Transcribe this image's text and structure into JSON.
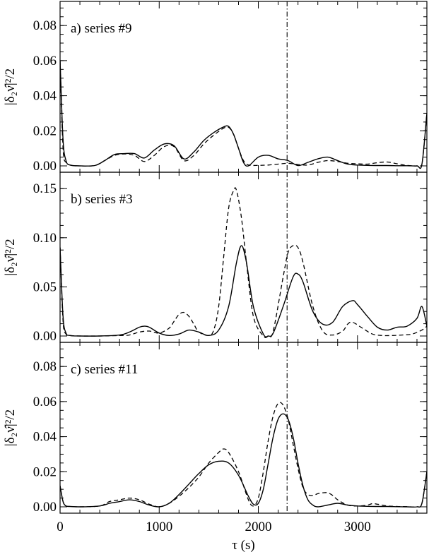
{
  "chart_data": [
    {
      "type": "line",
      "panel": "a) series #9",
      "ylabel": "|δ₂ν̂|²/2",
      "xlabel": "",
      "xlim": [
        0,
        3700
      ],
      "ylim": [
        0,
        0.09
      ],
      "yticks": [
        "0.00",
        "0.02",
        "0.04",
        "0.06",
        "0.08"
      ],
      "ytick_values": [
        0.0,
        0.02,
        0.04,
        0.06,
        0.08
      ],
      "xticks": [
        "0",
        "1000",
        "2000",
        "3000"
      ],
      "xtick_values": [
        0,
        1000,
        2000,
        3000
      ],
      "vline_x": 2290,
      "series": [
        {
          "style": "solid",
          "x": [
            0,
            30,
            60,
            100,
            200,
            350,
            450,
            550,
            650,
            750,
            850,
            950,
            1050,
            1150,
            1250,
            1350,
            1450,
            1550,
            1650,
            1700,
            1750,
            1800,
            1850,
            1900,
            2000,
            2100,
            2200,
            2300,
            2400,
            2500,
            2600,
            2700,
            2800,
            2900,
            3000,
            3100,
            3200,
            3300,
            3400,
            3500,
            3600,
            3650,
            3700
          ],
          "y": [
            0.06,
            0.015,
            0.003,
            0.0005,
            0.0,
            0.0002,
            0.003,
            0.0065,
            0.007,
            0.007,
            0.0045,
            0.009,
            0.0125,
            0.0115,
            0.004,
            0.008,
            0.0145,
            0.019,
            0.0222,
            0.0225,
            0.018,
            0.01,
            0.002,
            0.0,
            0.005,
            0.006,
            0.004,
            0.003,
            0.0002,
            0.002,
            0.004,
            0.005,
            0.003,
            0.001,
            0.0005,
            0.0003,
            0.0002,
            0.0002,
            0.0001,
            0.0001,
            0.0,
            0.001,
            0.03
          ]
        },
        {
          "style": "dashed",
          "x": [
            0,
            30,
            60,
            100,
            200,
            350,
            450,
            550,
            650,
            750,
            850,
            950,
            1050,
            1150,
            1250,
            1350,
            1450,
            1550,
            1650,
            1700,
            1750,
            1800,
            1850,
            1900,
            2000,
            2100,
            2200,
            2300,
            2400,
            2500,
            2600,
            2700,
            2800,
            2900,
            3000,
            3100,
            3200,
            3300,
            3400,
            3500,
            3600,
            3650,
            3700
          ],
          "y": [
            0.06,
            0.01,
            0.002,
            0.0005,
            0.0,
            0.0002,
            0.003,
            0.006,
            0.0068,
            0.006,
            0.0025,
            0.006,
            0.011,
            0.011,
            0.003,
            0.006,
            0.0125,
            0.0175,
            0.0215,
            0.022,
            0.018,
            0.01,
            0.003,
            0.0005,
            0.0003,
            0.0005,
            0.001,
            0.0015,
            0.0008,
            0.0005,
            0.002,
            0.003,
            0.0025,
            0.0015,
            0.0012,
            0.001,
            0.0018,
            0.0022,
            0.0012,
            0.0003,
            0.0,
            0.001,
            0.03
          ]
        }
      ]
    },
    {
      "type": "line",
      "panel": "b) series #3",
      "ylabel": "|δ₂ν̂|²/2",
      "xlabel": "",
      "xlim": [
        0,
        3700
      ],
      "ylim": [
        0,
        0.16
      ],
      "yticks": [
        "0.00",
        "0.05",
        "0.10",
        "0.15"
      ],
      "ytick_values": [
        0.0,
        0.05,
        0.1,
        0.15
      ],
      "xticks": [
        "0",
        "1000",
        "2000",
        "3000"
      ],
      "xtick_values": [
        0,
        1000,
        2000,
        3000
      ],
      "vline_x": 2290,
      "series": [
        {
          "style": "solid",
          "x": [
            0,
            30,
            60,
            100,
            200,
            400,
            600,
            700,
            800,
            850,
            900,
            1000,
            1100,
            1200,
            1300,
            1400,
            1500,
            1600,
            1700,
            1780,
            1830,
            1880,
            1950,
            2050,
            2100,
            2150,
            2250,
            2350,
            2400,
            2450,
            2550,
            2650,
            2750,
            2850,
            2950,
            3000,
            3100,
            3200,
            3300,
            3400,
            3500,
            3600,
            3650,
            3700
          ],
          "y": [
            0.09,
            0.02,
            0.003,
            0.0005,
            0.0,
            0.0,
            0.001,
            0.004,
            0.009,
            0.01,
            0.009,
            0.003,
            0.0005,
            0.002,
            0.006,
            0.004,
            0.0005,
            0.006,
            0.03,
            0.075,
            0.092,
            0.075,
            0.03,
            0.002,
            0.0,
            0.003,
            0.03,
            0.06,
            0.063,
            0.055,
            0.025,
            0.012,
            0.014,
            0.03,
            0.036,
            0.032,
            0.02,
            0.009,
            0.006,
            0.009,
            0.01,
            0.018,
            0.03,
            0.01
          ]
        },
        {
          "style": "dashed",
          "x": [
            0,
            30,
            60,
            100,
            200,
            400,
            600,
            700,
            800,
            900,
            1000,
            1100,
            1150,
            1200,
            1250,
            1300,
            1350,
            1400,
            1500,
            1550,
            1600,
            1650,
            1700,
            1750,
            1780,
            1830,
            1880,
            1950,
            2050,
            2100,
            2150,
            2250,
            2300,
            2350,
            2400,
            2450,
            2550,
            2650,
            2750,
            2850,
            2900,
            2950,
            3050,
            3150,
            3250,
            3350,
            3450,
            3550,
            3650,
            3700
          ],
          "y": [
            0.09,
            0.015,
            0.002,
            0.0005,
            0.0,
            0.0,
            0.0005,
            0.001,
            0.004,
            0.005,
            0.003,
            0.008,
            0.015,
            0.022,
            0.024,
            0.02,
            0.012,
            0.004,
            0.0005,
            0.006,
            0.03,
            0.08,
            0.13,
            0.148,
            0.148,
            0.12,
            0.075,
            0.02,
            0.0,
            0.0,
            0.005,
            0.06,
            0.085,
            0.092,
            0.09,
            0.075,
            0.03,
            0.005,
            0.001,
            0.005,
            0.012,
            0.014,
            0.008,
            0.002,
            0.0005,
            0.0005,
            0.001,
            0.002,
            0.006,
            0.01
          ]
        }
      ]
    },
    {
      "type": "line",
      "panel": "c) series #11",
      "ylabel": "|δ₂ν̂|²/2",
      "xlabel": "τ (s)",
      "xlim": [
        0,
        3700
      ],
      "ylim": [
        0,
        0.09
      ],
      "yticks": [
        "0.00",
        "0.02",
        "0.04",
        "0.06",
        "0.08"
      ],
      "ytick_values": [
        0.0,
        0.02,
        0.04,
        0.06,
        0.08
      ],
      "xticks": [
        "0",
        "1000",
        "2000",
        "3000"
      ],
      "xtick_values": [
        0,
        1000,
        2000,
        3000
      ],
      "vline_x": 2290,
      "series": [
        {
          "style": "solid",
          "x": [
            0,
            30,
            60,
            100,
            200,
            400,
            500,
            600,
            700,
            800,
            900,
            1000,
            1100,
            1200,
            1300,
            1400,
            1500,
            1600,
            1700,
            1800,
            1900,
            1950,
            2000,
            2050,
            2100,
            2150,
            2200,
            2250,
            2300,
            2350,
            2400,
            2450,
            2500,
            2550,
            2600,
            2700,
            2800,
            2900,
            3000,
            3100,
            3200,
            3300,
            3400,
            3500,
            3600,
            3650,
            3700
          ],
          "y": [
            0.012,
            0.003,
            0.0005,
            0.0002,
            0.0,
            0.0005,
            0.002,
            0.003,
            0.004,
            0.003,
            0.001,
            0.0,
            0.002,
            0.007,
            0.013,
            0.019,
            0.024,
            0.026,
            0.025,
            0.018,
            0.006,
            0.0015,
            0.002,
            0.01,
            0.025,
            0.04,
            0.05,
            0.053,
            0.05,
            0.04,
            0.025,
            0.012,
            0.004,
            0.001,
            0.0,
            0.001,
            0.002,
            0.001,
            0.0005,
            0.0003,
            0.0002,
            0.0002,
            0.0001,
            0.0,
            0.0,
            0.002,
            0.02
          ]
        },
        {
          "style": "dashed",
          "x": [
            0,
            30,
            60,
            100,
            200,
            400,
            500,
            600,
            700,
            800,
            900,
            1000,
            1100,
            1200,
            1300,
            1400,
            1500,
            1600,
            1650,
            1700,
            1800,
            1900,
            1950,
            2000,
            2050,
            2100,
            2150,
            2200,
            2250,
            2300,
            2350,
            2400,
            2450,
            2500,
            2550,
            2600,
            2650,
            2700,
            2750,
            2800,
            2900,
            3000,
            3100,
            3150,
            3200,
            3300,
            3400,
            3500,
            3600,
            3650,
            3700
          ],
          "y": [
            0.012,
            0.003,
            0.0005,
            0.0002,
            0.0,
            0.0005,
            0.003,
            0.004,
            0.005,
            0.004,
            0.0015,
            0.0,
            0.002,
            0.006,
            0.011,
            0.017,
            0.025,
            0.031,
            0.033,
            0.031,
            0.02,
            0.004,
            0.0005,
            0.005,
            0.02,
            0.038,
            0.052,
            0.059,
            0.058,
            0.05,
            0.036,
            0.022,
            0.011,
            0.007,
            0.0065,
            0.0075,
            0.008,
            0.008,
            0.0065,
            0.004,
            0.001,
            0.0005,
            0.001,
            0.0018,
            0.0015,
            0.0005,
            0.0002,
            0.0001,
            0.0,
            0.002,
            0.02
          ]
        }
      ]
    }
  ]
}
